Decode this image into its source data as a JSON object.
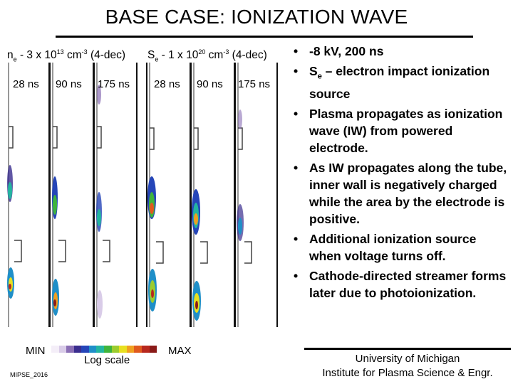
{
  "slide": {
    "title": "BASE CASE: IONIZATION WAVE"
  },
  "left_panel": {
    "title_base": "n",
    "title_sub": "e",
    "title_mid": " - 3 x 10",
    "title_sup": "13",
    "title_unit": " cm",
    "title_unit_sup": "-3",
    "title_end": " (4-dec)",
    "times": [
      "28 ns",
      "90 ns",
      "175 ns"
    ]
  },
  "right_panel": {
    "title_base": "S",
    "title_sub": "e",
    "title_mid": " - 1 x 10",
    "title_sup": "20",
    "title_unit": " cm",
    "title_unit_sup": "-3",
    "title_end": " (4-dec)",
    "times": [
      "28 ns",
      "90 ns",
      "175 ns"
    ]
  },
  "bullets": [
    {
      "text": "-8 kV, 200 ns"
    },
    {
      "pre": "S",
      "sub": "e",
      "post": " – electron impact ionization source"
    },
    {
      "text": "Plasma propagates as ionization wave (IW) from powered electrode."
    },
    {
      "text": "As IW propagates along the tube, inner wall is negatively charged while the area by the electrode is positive."
    },
    {
      "text": "Additional ionization source when voltage turns off."
    },
    {
      "text": "Cathode-directed streamer forms later due to photoionization."
    }
  ],
  "colorbar": {
    "min_label": "MIN",
    "max_label": "MAX",
    "scale_label": "Log scale",
    "colors": [
      "#f4eef8",
      "#d9cce8",
      "#8a6fb5",
      "#3a2d8e",
      "#2545b8",
      "#1f8fc8",
      "#23b5a0",
      "#3fb43c",
      "#9ccc2e",
      "#e8e020",
      "#f0a020",
      "#e05a1e",
      "#b8281e",
      "#8a1a18"
    ]
  },
  "footer": {
    "conference": "MIPSE_2016",
    "line1": "University of Michigan",
    "line2": "Institute for Plasma Science & Engr."
  }
}
